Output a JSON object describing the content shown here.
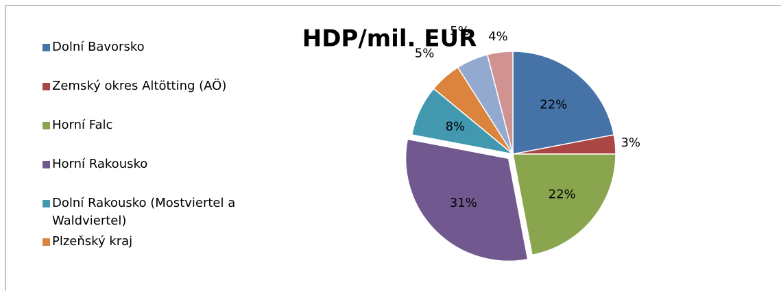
{
  "chart_data": {
    "type": "pie",
    "title": "HDP/mil. EUR",
    "categories": [
      "Dolní Bavorsko",
      "Zemský okres Altötting (AÖ)",
      "Horní Falc",
      "Horní Rakousko",
      "Dolní Rakousko (Mostviertel a Waldviertel)",
      "Plzeňský kraj",
      null,
      null
    ],
    "values": [
      22,
      3,
      22,
      31,
      8,
      5,
      5,
      4
    ],
    "value_labels": [
      "22%",
      "3%",
      "22%",
      "31%",
      "8%",
      "5%",
      "5%",
      "4%"
    ],
    "colors": [
      "#4572a7",
      "#aa4643",
      "#89a54e",
      "#71588f",
      "#4198af",
      "#db843d",
      "#93a9cf",
      "#d19392"
    ],
    "exploded": [
      3
    ]
  }
}
